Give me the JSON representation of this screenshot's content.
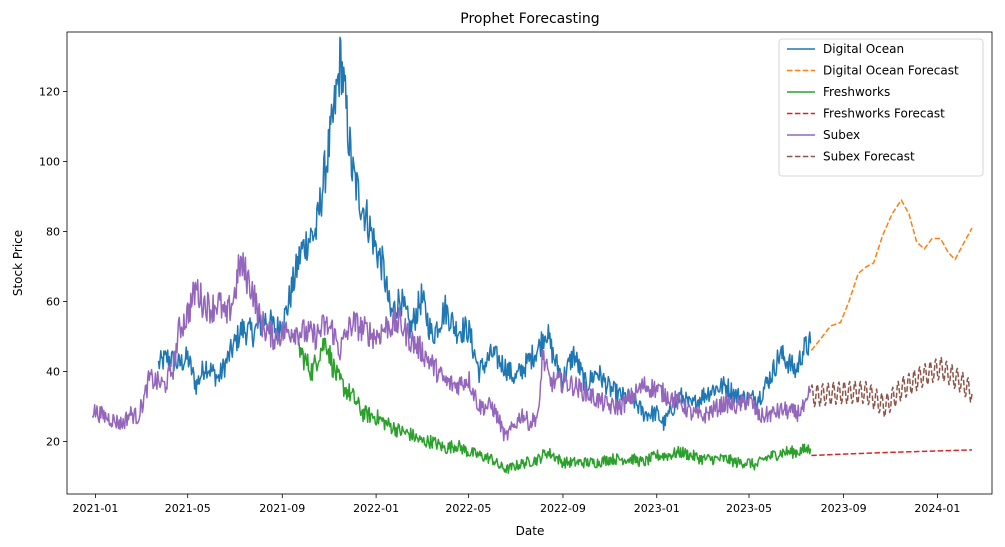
{
  "chart_data": {
    "type": "line",
    "title": "Prophet Forecasting",
    "xlabel": "Date",
    "ylabel": "Stock Price",
    "xlim": [
      "2020-11-25",
      "2024-03-12"
    ],
    "ylim": [
      5,
      137
    ],
    "x_ticks": [
      "2021-01",
      "2021-05",
      "2021-09",
      "2022-01",
      "2022-05",
      "2022-09",
      "2023-01",
      "2023-05",
      "2023-09",
      "2024-01"
    ],
    "y_ticks": [
      20,
      40,
      60,
      80,
      100,
      120
    ],
    "grid": false,
    "legend_position": "top-right",
    "series": [
      {
        "name": "Digital Ocean",
        "color": "#1f77b4",
        "style": "solid",
        "points": [
          [
            "2021-03-24",
            42
          ],
          [
            "2021-04-05",
            44
          ],
          [
            "2021-04-20",
            42
          ],
          [
            "2021-05-01",
            44
          ],
          [
            "2021-05-12",
            36
          ],
          [
            "2021-05-24",
            42
          ],
          [
            "2021-06-10",
            38
          ],
          [
            "2021-06-25",
            45
          ],
          [
            "2021-07-10",
            52
          ],
          [
            "2021-07-25",
            51
          ],
          [
            "2021-08-10",
            55
          ],
          [
            "2021-08-25",
            52
          ],
          [
            "2021-09-05",
            56
          ],
          [
            "2021-09-15",
            65
          ],
          [
            "2021-09-25",
            74
          ],
          [
            "2021-10-05",
            78
          ],
          [
            "2021-10-15",
            80
          ],
          [
            "2021-10-25",
            95
          ],
          [
            "2021-11-05",
            110
          ],
          [
            "2021-11-12",
            122
          ],
          [
            "2021-11-16",
            130
          ],
          [
            "2021-11-22",
            117
          ],
          [
            "2021-12-01",
            97
          ],
          [
            "2021-12-10",
            90
          ],
          [
            "2021-12-20",
            84
          ],
          [
            "2022-01-01",
            75
          ],
          [
            "2022-01-10",
            70
          ],
          [
            "2022-01-20",
            56
          ],
          [
            "2022-02-01",
            61
          ],
          [
            "2022-02-15",
            52
          ],
          [
            "2022-03-01",
            61
          ],
          [
            "2022-03-15",
            50
          ],
          [
            "2022-04-01",
            58
          ],
          [
            "2022-04-15",
            52
          ],
          [
            "2022-05-01",
            52
          ],
          [
            "2022-05-15",
            40
          ],
          [
            "2022-06-01",
            45
          ],
          [
            "2022-06-15",
            42
          ],
          [
            "2022-07-01",
            38
          ],
          [
            "2022-07-15",
            42
          ],
          [
            "2022-08-01",
            47
          ],
          [
            "2022-08-10",
            52
          ],
          [
            "2022-08-20",
            44
          ],
          [
            "2022-09-01",
            38
          ],
          [
            "2022-09-15",
            45
          ],
          [
            "2022-10-01",
            36
          ],
          [
            "2022-10-15",
            40
          ],
          [
            "2022-11-01",
            35
          ],
          [
            "2022-11-15",
            33
          ],
          [
            "2022-12-01",
            32
          ],
          [
            "2022-12-15",
            28
          ],
          [
            "2023-01-01",
            28
          ],
          [
            "2023-01-10",
            25
          ],
          [
            "2023-01-20",
            29
          ],
          [
            "2023-02-01",
            33
          ],
          [
            "2023-02-15",
            30
          ],
          [
            "2023-03-01",
            33
          ],
          [
            "2023-03-15",
            35
          ],
          [
            "2023-04-01",
            36
          ],
          [
            "2023-04-15",
            33
          ],
          [
            "2023-05-01",
            32
          ],
          [
            "2023-05-15",
            33
          ],
          [
            "2023-06-01",
            40
          ],
          [
            "2023-06-10",
            45
          ],
          [
            "2023-06-20",
            43
          ],
          [
            "2023-07-01",
            40
          ],
          [
            "2023-07-10",
            46
          ],
          [
            "2023-07-20",
            48
          ]
        ]
      },
      {
        "name": "Digital Ocean Forecast",
        "color": "#ff7f0e",
        "style": "dashed",
        "points": [
          [
            "2023-07-21",
            46
          ],
          [
            "2023-08-01",
            49
          ],
          [
            "2023-08-15",
            53
          ],
          [
            "2023-08-28",
            54
          ],
          [
            "2023-09-08",
            60
          ],
          [
            "2023-09-20",
            68
          ],
          [
            "2023-10-01",
            70
          ],
          [
            "2023-10-10",
            71
          ],
          [
            "2023-10-22",
            79
          ],
          [
            "2023-11-03",
            85
          ],
          [
            "2023-11-15",
            89
          ],
          [
            "2023-11-25",
            85
          ],
          [
            "2023-12-05",
            77
          ],
          [
            "2023-12-15",
            75
          ],
          [
            "2023-12-25",
            78
          ],
          [
            "2024-01-05",
            78
          ],
          [
            "2024-01-15",
            74
          ],
          [
            "2024-01-24",
            72
          ],
          [
            "2024-02-05",
            77
          ],
          [
            "2024-02-15",
            81
          ]
        ]
      },
      {
        "name": "Freshworks",
        "color": "#2ca02c",
        "style": "solid",
        "points": [
          [
            "2021-09-22",
            47
          ],
          [
            "2021-10-01",
            43
          ],
          [
            "2021-10-10",
            40
          ],
          [
            "2021-10-20",
            46
          ],
          [
            "2021-10-28",
            49
          ],
          [
            "2021-11-05",
            42
          ],
          [
            "2021-11-12",
            38
          ],
          [
            "2021-11-22",
            35
          ],
          [
            "2021-12-01",
            33
          ],
          [
            "2021-12-15",
            28
          ],
          [
            "2022-01-01",
            27
          ],
          [
            "2022-01-15",
            25
          ],
          [
            "2022-02-01",
            23
          ],
          [
            "2022-02-15",
            22
          ],
          [
            "2022-03-01",
            20
          ],
          [
            "2022-03-15",
            20
          ],
          [
            "2022-04-01",
            18
          ],
          [
            "2022-04-15",
            19
          ],
          [
            "2022-05-01",
            17
          ],
          [
            "2022-05-15",
            16
          ],
          [
            "2022-06-01",
            15
          ],
          [
            "2022-06-10",
            13
          ],
          [
            "2022-06-20",
            12
          ],
          [
            "2022-07-01",
            13
          ],
          [
            "2022-07-15",
            14
          ],
          [
            "2022-08-01",
            15
          ],
          [
            "2022-08-10",
            17
          ],
          [
            "2022-08-20",
            16
          ],
          [
            "2022-09-01",
            14
          ],
          [
            "2022-09-15",
            14
          ],
          [
            "2022-10-01",
            14
          ],
          [
            "2022-10-15",
            14
          ],
          [
            "2022-11-01",
            15
          ],
          [
            "2022-11-15",
            15
          ],
          [
            "2022-12-01",
            15
          ],
          [
            "2022-12-15",
            14
          ],
          [
            "2023-01-01",
            16
          ],
          [
            "2023-01-15",
            16
          ],
          [
            "2023-02-01",
            17
          ],
          [
            "2023-02-15",
            16
          ],
          [
            "2023-03-01",
            15
          ],
          [
            "2023-03-15",
            15
          ],
          [
            "2023-04-01",
            15
          ],
          [
            "2023-04-15",
            14
          ],
          [
            "2023-05-01",
            14
          ],
          [
            "2023-05-10",
            13
          ],
          [
            "2023-05-20",
            15
          ],
          [
            "2023-06-01",
            16
          ],
          [
            "2023-06-15",
            17
          ],
          [
            "2023-07-01",
            17
          ],
          [
            "2023-07-20",
            18
          ]
        ]
      },
      {
        "name": "Freshworks Forecast",
        "color": "#d62728",
        "style": "dashed",
        "points": [
          [
            "2023-07-21",
            16
          ],
          [
            "2023-09-01",
            16.4
          ],
          [
            "2023-11-01",
            16.9
          ],
          [
            "2024-01-01",
            17.3
          ],
          [
            "2024-02-15",
            17.6
          ]
        ]
      },
      {
        "name": "Subex",
        "color": "#9467bd",
        "style": "solid",
        "points": [
          [
            "2020-12-28",
            29
          ],
          [
            "2021-01-05",
            28
          ],
          [
            "2021-01-15",
            27
          ],
          [
            "2021-01-25",
            26
          ],
          [
            "2021-02-05",
            25
          ],
          [
            "2021-02-15",
            28
          ],
          [
            "2021-02-25",
            27
          ],
          [
            "2021-03-05",
            32
          ],
          [
            "2021-03-12",
            38
          ],
          [
            "2021-03-22",
            37
          ],
          [
            "2021-04-01",
            36
          ],
          [
            "2021-04-12",
            41
          ],
          [
            "2021-04-20",
            52
          ],
          [
            "2021-04-28",
            55
          ],
          [
            "2021-05-05",
            59
          ],
          [
            "2021-05-12",
            64
          ],
          [
            "2021-05-20",
            60
          ],
          [
            "2021-06-01",
            58
          ],
          [
            "2021-06-10",
            60
          ],
          [
            "2021-06-20",
            55
          ],
          [
            "2021-07-01",
            62
          ],
          [
            "2021-07-08",
            71
          ],
          [
            "2021-07-15",
            68
          ],
          [
            "2021-07-25",
            63
          ],
          [
            "2021-08-01",
            56
          ],
          [
            "2021-08-10",
            52
          ],
          [
            "2021-08-20",
            50
          ],
          [
            "2021-09-01",
            51
          ],
          [
            "2021-09-15",
            52
          ],
          [
            "2021-10-01",
            51
          ],
          [
            "2021-10-15",
            50
          ],
          [
            "2021-10-25",
            53
          ],
          [
            "2021-11-05",
            52
          ],
          [
            "2021-11-15",
            46
          ],
          [
            "2021-11-22",
            50
          ],
          [
            "2021-12-01",
            54
          ],
          [
            "2021-12-15",
            52
          ],
          [
            "2022-01-01",
            50
          ],
          [
            "2022-01-15",
            53
          ],
          [
            "2022-02-01",
            54
          ],
          [
            "2022-02-15",
            49
          ],
          [
            "2022-03-01",
            46
          ],
          [
            "2022-03-15",
            42
          ],
          [
            "2022-04-01",
            37
          ],
          [
            "2022-04-15",
            36
          ],
          [
            "2022-05-01",
            38
          ],
          [
            "2022-05-15",
            30
          ],
          [
            "2022-06-01",
            30
          ],
          [
            "2022-06-10",
            26
          ],
          [
            "2022-06-18",
            21
          ],
          [
            "2022-06-28",
            24
          ],
          [
            "2022-07-10",
            28
          ],
          [
            "2022-07-20",
            25
          ],
          [
            "2022-08-01",
            28
          ],
          [
            "2022-08-05",
            45
          ],
          [
            "2022-08-15",
            37
          ],
          [
            "2022-09-01",
            37
          ],
          [
            "2022-09-15",
            36
          ],
          [
            "2022-10-01",
            34
          ],
          [
            "2022-10-15",
            32
          ],
          [
            "2022-11-01",
            30
          ],
          [
            "2022-11-15",
            30
          ],
          [
            "2022-12-01",
            33
          ],
          [
            "2022-12-15",
            36
          ],
          [
            "2023-01-01",
            35
          ],
          [
            "2023-01-15",
            33
          ],
          [
            "2023-02-01",
            31
          ],
          [
            "2023-02-15",
            28
          ],
          [
            "2023-03-01",
            27
          ],
          [
            "2023-03-15",
            29
          ],
          [
            "2023-04-01",
            31
          ],
          [
            "2023-04-15",
            30
          ],
          [
            "2023-05-01",
            32
          ],
          [
            "2023-05-15",
            27
          ],
          [
            "2023-06-01",
            28
          ],
          [
            "2023-06-15",
            29
          ],
          [
            "2023-07-01",
            28
          ],
          [
            "2023-07-15",
            30
          ],
          [
            "2023-07-20",
            35
          ]
        ]
      },
      {
        "name": "Subex Forecast",
        "color": "#8c564b",
        "style": "dashed",
        "points": [
          [
            "2023-07-21",
            33
          ],
          [
            "2023-09-01",
            34
          ],
          [
            "2023-10-01",
            34
          ],
          [
            "2023-10-25",
            30
          ],
          [
            "2023-11-15",
            35
          ],
          [
            "2023-12-15",
            39
          ],
          [
            "2024-01-05",
            41
          ],
          [
            "2024-02-01",
            37
          ],
          [
            "2024-02-15",
            34
          ]
        ],
        "seasonal_amplitude": 3.2
      }
    ]
  }
}
